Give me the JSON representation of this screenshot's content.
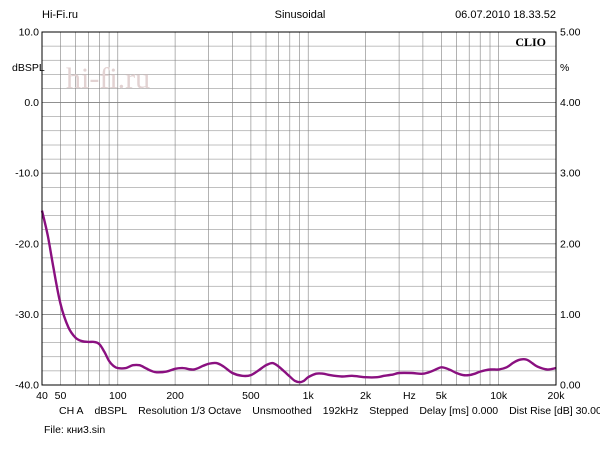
{
  "header": {
    "left": "Hi-Fi.ru",
    "center": "Sinusoidal",
    "right": "06.07.2010 18.33.52"
  },
  "watermark": {
    "text": "hi-fi.ru"
  },
  "brand": {
    "text": "CLIO"
  },
  "colors": {
    "curve": "#8a1080",
    "grid": "#808080",
    "frame": "#000000",
    "watermark": "#e2d2d2"
  },
  "chart_data": {
    "type": "line",
    "title": "Sinusoidal",
    "x_scale": "log",
    "xlim": [
      40,
      20000
    ],
    "ylim": [
      -40,
      10
    ],
    "y2lim": [
      0,
      5
    ],
    "ylabel": "dBSPL",
    "y2label": "%",
    "xlabel": "Hz",
    "grid": true,
    "x_tick_values": [
      40,
      50,
      100,
      200,
      500,
      1000,
      2000,
      5000,
      10000,
      20000
    ],
    "x_tick_labels": [
      "40",
      "50",
      "100",
      "200",
      "500",
      "1k",
      "2k",
      "5k",
      "10k",
      "20k"
    ],
    "y_ticks": [
      "10.0",
      "0.0",
      "-10.0",
      "-20.0",
      "-30.0",
      "-40.0"
    ],
    "y2_ticks": [
      "5.00",
      "4.00",
      "3.00",
      "2.00",
      "1.00",
      "0.00"
    ],
    "series": [
      {
        "x": [
          40,
          43,
          46,
          50,
          55,
          60,
          65,
          70,
          75,
          80,
          85,
          90,
          95,
          100,
          110,
          120,
          130,
          140,
          150,
          160,
          180,
          200,
          220,
          250,
          280,
          300,
          330,
          360,
          400,
          450,
          500,
          550,
          600,
          650,
          700,
          750,
          800,
          850,
          900,
          950,
          1000,
          1100,
          1200,
          1300,
          1500,
          1700,
          2000,
          2300,
          2500,
          2800,
          3000,
          3500,
          4000,
          4500,
          5000,
          5500,
          6000,
          6500,
          7000,
          7500,
          8000,
          9000,
          10000,
          11000,
          12000,
          13000,
          14000,
          15000,
          16000,
          18000,
          20000
        ],
        "y": [
          -15.3,
          -19.0,
          -23.5,
          -28.5,
          -31.8,
          -33.3,
          -33.8,
          -33.9,
          -33.9,
          -34.2,
          -35.3,
          -36.6,
          -37.3,
          -37.6,
          -37.6,
          -37.2,
          -37.2,
          -37.6,
          -38.0,
          -38.2,
          -38.1,
          -37.7,
          -37.6,
          -37.8,
          -37.3,
          -37.0,
          -36.9,
          -37.4,
          -38.3,
          -38.7,
          -38.6,
          -37.9,
          -37.2,
          -36.9,
          -37.4,
          -38.1,
          -38.8,
          -39.4,
          -39.6,
          -39.4,
          -38.9,
          -38.4,
          -38.4,
          -38.6,
          -38.8,
          -38.7,
          -38.9,
          -38.9,
          -38.7,
          -38.5,
          -38.3,
          -38.3,
          -38.4,
          -38.0,
          -37.5,
          -37.8,
          -38.3,
          -38.6,
          -38.6,
          -38.4,
          -38.1,
          -37.8,
          -37.8,
          -37.5,
          -36.8,
          -36.4,
          -36.4,
          -36.9,
          -37.4,
          -37.8,
          -37.6
        ]
      }
    ]
  },
  "footer": {
    "channel": "CH A",
    "unit": "dBSPL",
    "resolution": "Resolution 1/3 Octave",
    "smoothing": "Unsmoothed",
    "rate": "192kHz",
    "mode": "Stepped",
    "delay": "Delay [ms] 0.000",
    "dist": "Dist Rise [dB] 30.00",
    "file": "File: кни3.sin"
  }
}
